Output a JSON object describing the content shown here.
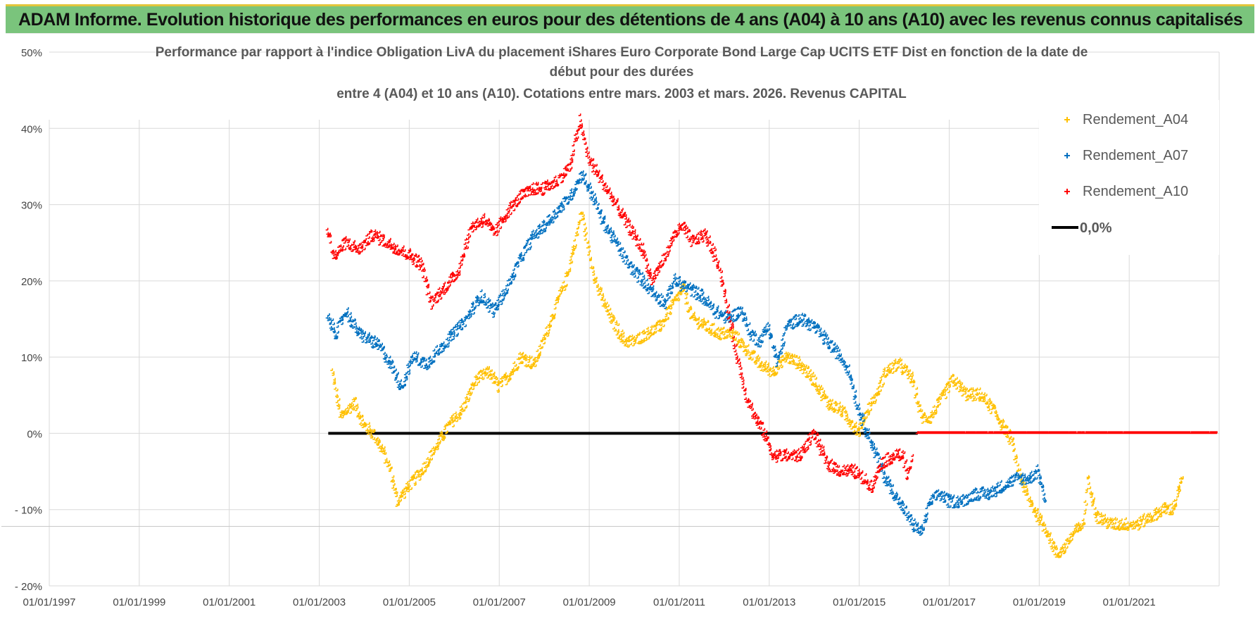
{
  "header": {
    "title": "ADAM Informe. Evolution historique des performances en euros pour des détentions de 4 ans (A04) à 10 ans (A10) avec les revenus connus capitalisés"
  },
  "colors": {
    "banner": "#7ac47c",
    "banner_border": "#e2c53b",
    "a04": "#ffc000",
    "a07": "#0070c0",
    "a10": "#ff0000",
    "zero": "#000000"
  },
  "chart_data": {
    "type": "scatter",
    "title_lines": [
      "Performance par rapport à l'indice Obligation LivA  du placement iShares Euro Corporate Bond Large Cap UCITS ETF Dist en fonction de la date de",
      "début pour des durées",
      "entre 4 (A04) et 10 ans (A10). Cotations entre mars. 2003 et mars. 2026. Revenus CAPITAL"
    ],
    "xlabel": "",
    "ylabel": "",
    "x_range": [
      "01/01/1997",
      "31/12/2022"
    ],
    "x_ticks": [
      "01/01/1997",
      "01/01/1999",
      "01/01/2001",
      "01/01/2003",
      "01/01/2005",
      "01/01/2007",
      "01/01/2009",
      "01/01/2011",
      "01/01/2013",
      "01/01/2015",
      "01/01/2017",
      "01/01/2019",
      "01/01/2021"
    ],
    "ylim": [
      -20,
      50
    ],
    "y_ticks": [
      {
        "value": 50,
        "label": "50%"
      },
      {
        "value": 40,
        "label": "40%"
      },
      {
        "value": 30,
        "label": "30%"
      },
      {
        "value": 20,
        "label": "20%"
      },
      {
        "value": 10,
        "label": "10%"
      },
      {
        "value": 0,
        "label": "0%"
      },
      {
        "value": -10,
        "label": "- 10%"
      },
      {
        "value": -20,
        "label": "- 20%"
      }
    ],
    "legend_position": "top-right",
    "series": [
      {
        "name": "Rendement_A04",
        "color": "#ffc000",
        "marker": "plus",
        "points": [
          [
            2003.3,
            8
          ],
          [
            2003.5,
            2
          ],
          [
            2003.8,
            4
          ],
          [
            2004.0,
            1
          ],
          [
            2004.2,
            0
          ],
          [
            2004.4,
            -2
          ],
          [
            2004.6,
            -5
          ],
          [
            2004.75,
            -9
          ],
          [
            2005.0,
            -7
          ],
          [
            2005.3,
            -5
          ],
          [
            2005.6,
            -2
          ],
          [
            2005.9,
            1
          ],
          [
            2006.2,
            3
          ],
          [
            2006.5,
            7
          ],
          [
            2006.8,
            8
          ],
          [
            2007.0,
            6
          ],
          [
            2007.3,
            8
          ],
          [
            2007.5,
            10
          ],
          [
            2007.8,
            9
          ],
          [
            2008.0,
            12
          ],
          [
            2008.3,
            17
          ],
          [
            2008.5,
            20
          ],
          [
            2008.7,
            25
          ],
          [
            2008.85,
            29
          ],
          [
            2009.0,
            24
          ],
          [
            2009.2,
            19
          ],
          [
            2009.5,
            15
          ],
          [
            2009.8,
            12
          ],
          [
            2010.0,
            12
          ],
          [
            2010.3,
            13
          ],
          [
            2010.6,
            14
          ],
          [
            2010.9,
            17
          ],
          [
            2011.1,
            19
          ],
          [
            2011.3,
            15
          ],
          [
            2011.6,
            14
          ],
          [
            2011.9,
            13
          ],
          [
            2012.2,
            13
          ],
          [
            2012.5,
            11
          ],
          [
            2012.8,
            9
          ],
          [
            2013.1,
            8
          ],
          [
            2013.4,
            10
          ],
          [
            2013.7,
            9
          ],
          [
            2014.0,
            7
          ],
          [
            2014.3,
            4
          ],
          [
            2014.6,
            3
          ],
          [
            2014.9,
            1
          ],
          [
            2015.0,
            0
          ],
          [
            2015.2,
            3
          ],
          [
            2015.4,
            5
          ],
          [
            2015.6,
            8
          ],
          [
            2015.9,
            9
          ],
          [
            2016.2,
            7
          ],
          [
            2016.4,
            2
          ],
          [
            2016.6,
            2
          ],
          [
            2016.9,
            5
          ],
          [
            2017.1,
            7
          ],
          [
            2017.4,
            5
          ],
          [
            2017.7,
            5
          ],
          [
            2018.0,
            3
          ],
          [
            2018.2,
            1
          ],
          [
            2018.4,
            -1
          ],
          [
            2018.6,
            -6
          ],
          [
            2018.8,
            -9
          ],
          [
            2019.0,
            -11
          ],
          [
            2019.2,
            -13
          ],
          [
            2019.4,
            -16
          ],
          [
            2019.6,
            -15
          ],
          [
            2019.8,
            -13
          ],
          [
            2020.0,
            -12
          ],
          [
            2020.1,
            -6
          ],
          [
            2020.3,
            -11
          ],
          [
            2020.6,
            -12
          ],
          [
            2020.9,
            -12
          ],
          [
            2021.2,
            -12
          ],
          [
            2021.5,
            -11
          ],
          [
            2021.8,
            -10
          ],
          [
            2022.0,
            -10
          ],
          [
            2022.2,
            -6
          ]
        ]
      },
      {
        "name": "Rendement_A07",
        "color": "#0070c0",
        "marker": "plus",
        "points": [
          [
            2003.2,
            15
          ],
          [
            2003.4,
            13
          ],
          [
            2003.6,
            16
          ],
          [
            2003.9,
            13
          ],
          [
            2004.2,
            12
          ],
          [
            2004.4,
            11
          ],
          [
            2004.6,
            9
          ],
          [
            2004.85,
            6
          ],
          [
            2005.1,
            10
          ],
          [
            2005.4,
            9
          ],
          [
            2005.7,
            11
          ],
          [
            2006.0,
            13
          ],
          [
            2006.3,
            15
          ],
          [
            2006.6,
            18
          ],
          [
            2006.9,
            16
          ],
          [
            2007.2,
            19
          ],
          [
            2007.5,
            23
          ],
          [
            2007.8,
            26
          ],
          [
            2008.0,
            27
          ],
          [
            2008.3,
            29
          ],
          [
            2008.6,
            31
          ],
          [
            2008.85,
            34
          ],
          [
            2009.1,
            31
          ],
          [
            2009.3,
            28
          ],
          [
            2009.6,
            25
          ],
          [
            2009.9,
            22
          ],
          [
            2010.2,
            20
          ],
          [
            2010.5,
            18
          ],
          [
            2010.7,
            17
          ],
          [
            2010.9,
            20
          ],
          [
            2011.2,
            19
          ],
          [
            2011.5,
            18
          ],
          [
            2011.8,
            16
          ],
          [
            2012.1,
            15
          ],
          [
            2012.4,
            16
          ],
          [
            2012.6,
            13
          ],
          [
            2012.8,
            12
          ],
          [
            2013.0,
            14
          ],
          [
            2013.2,
            9
          ],
          [
            2013.4,
            14
          ],
          [
            2013.7,
            15
          ],
          [
            2014.0,
            14
          ],
          [
            2014.3,
            12
          ],
          [
            2014.6,
            10
          ],
          [
            2014.8,
            8
          ],
          [
            2015.0,
            3
          ],
          [
            2015.2,
            0
          ],
          [
            2015.4,
            -3
          ],
          [
            2015.6,
            -6
          ],
          [
            2015.8,
            -8
          ],
          [
            2016.0,
            -10
          ],
          [
            2016.2,
            -12
          ],
          [
            2016.4,
            -13
          ],
          [
            2016.6,
            -9
          ],
          [
            2016.8,
            -8
          ],
          [
            2017.0,
            -9
          ],
          [
            2017.3,
            -9
          ],
          [
            2017.6,
            -8
          ],
          [
            2017.9,
            -8
          ],
          [
            2018.2,
            -7
          ],
          [
            2018.5,
            -6
          ],
          [
            2018.8,
            -6
          ],
          [
            2019.0,
            -5
          ],
          [
            2019.15,
            -9
          ]
        ]
      },
      {
        "name": "Rendement_A10",
        "color": "#ff0000",
        "marker": "plus",
        "points": [
          [
            2003.2,
            27
          ],
          [
            2003.35,
            23
          ],
          [
            2003.6,
            25
          ],
          [
            2003.9,
            24
          ],
          [
            2004.2,
            26
          ],
          [
            2004.5,
            25
          ],
          [
            2004.8,
            24
          ],
          [
            2005.1,
            23
          ],
          [
            2005.3,
            22
          ],
          [
            2005.5,
            17
          ],
          [
            2005.8,
            19
          ],
          [
            2006.1,
            21
          ],
          [
            2006.4,
            27
          ],
          [
            2006.7,
            28
          ],
          [
            2006.9,
            26
          ],
          [
            2007.2,
            29
          ],
          [
            2007.5,
            31
          ],
          [
            2007.8,
            32
          ],
          [
            2008.0,
            32
          ],
          [
            2008.3,
            33
          ],
          [
            2008.6,
            35
          ],
          [
            2008.8,
            41
          ],
          [
            2009.0,
            36
          ],
          [
            2009.2,
            34
          ],
          [
            2009.5,
            31
          ],
          [
            2009.8,
            28
          ],
          [
            2010.0,
            26
          ],
          [
            2010.2,
            24
          ],
          [
            2010.4,
            20
          ],
          [
            2010.7,
            23
          ],
          [
            2010.9,
            26
          ],
          [
            2011.1,
            27
          ],
          [
            2011.3,
            25
          ],
          [
            2011.6,
            26
          ],
          [
            2011.9,
            22
          ],
          [
            2012.1,
            16
          ],
          [
            2012.3,
            10
          ],
          [
            2012.5,
            5
          ],
          [
            2012.7,
            2
          ],
          [
            2012.9,
            0
          ],
          [
            2013.1,
            -3
          ],
          [
            2013.4,
            -3
          ],
          [
            2013.7,
            -3
          ],
          [
            2014.0,
            0
          ],
          [
            2014.3,
            -4
          ],
          [
            2014.6,
            -5
          ],
          [
            2014.9,
            -5
          ],
          [
            2015.1,
            -6
          ],
          [
            2015.3,
            -7
          ],
          [
            2015.5,
            -4
          ],
          [
            2015.8,
            -3
          ],
          [
            2016.0,
            -3
          ],
          [
            2016.1,
            -6
          ],
          [
            2016.2,
            -3
          ]
        ]
      },
      {
        "name": "Rendement_A10 (0% segment)",
        "color": "#ff0000",
        "marker": "plus",
        "legend": false,
        "points": [
          [
            2016.3,
            0
          ],
          [
            2022.95,
            0
          ]
        ]
      }
    ],
    "reference_line": {
      "name": "0,0%",
      "value": 0,
      "x_start": 2003.2,
      "x_end": 2016.3,
      "color": "#000000"
    }
  }
}
